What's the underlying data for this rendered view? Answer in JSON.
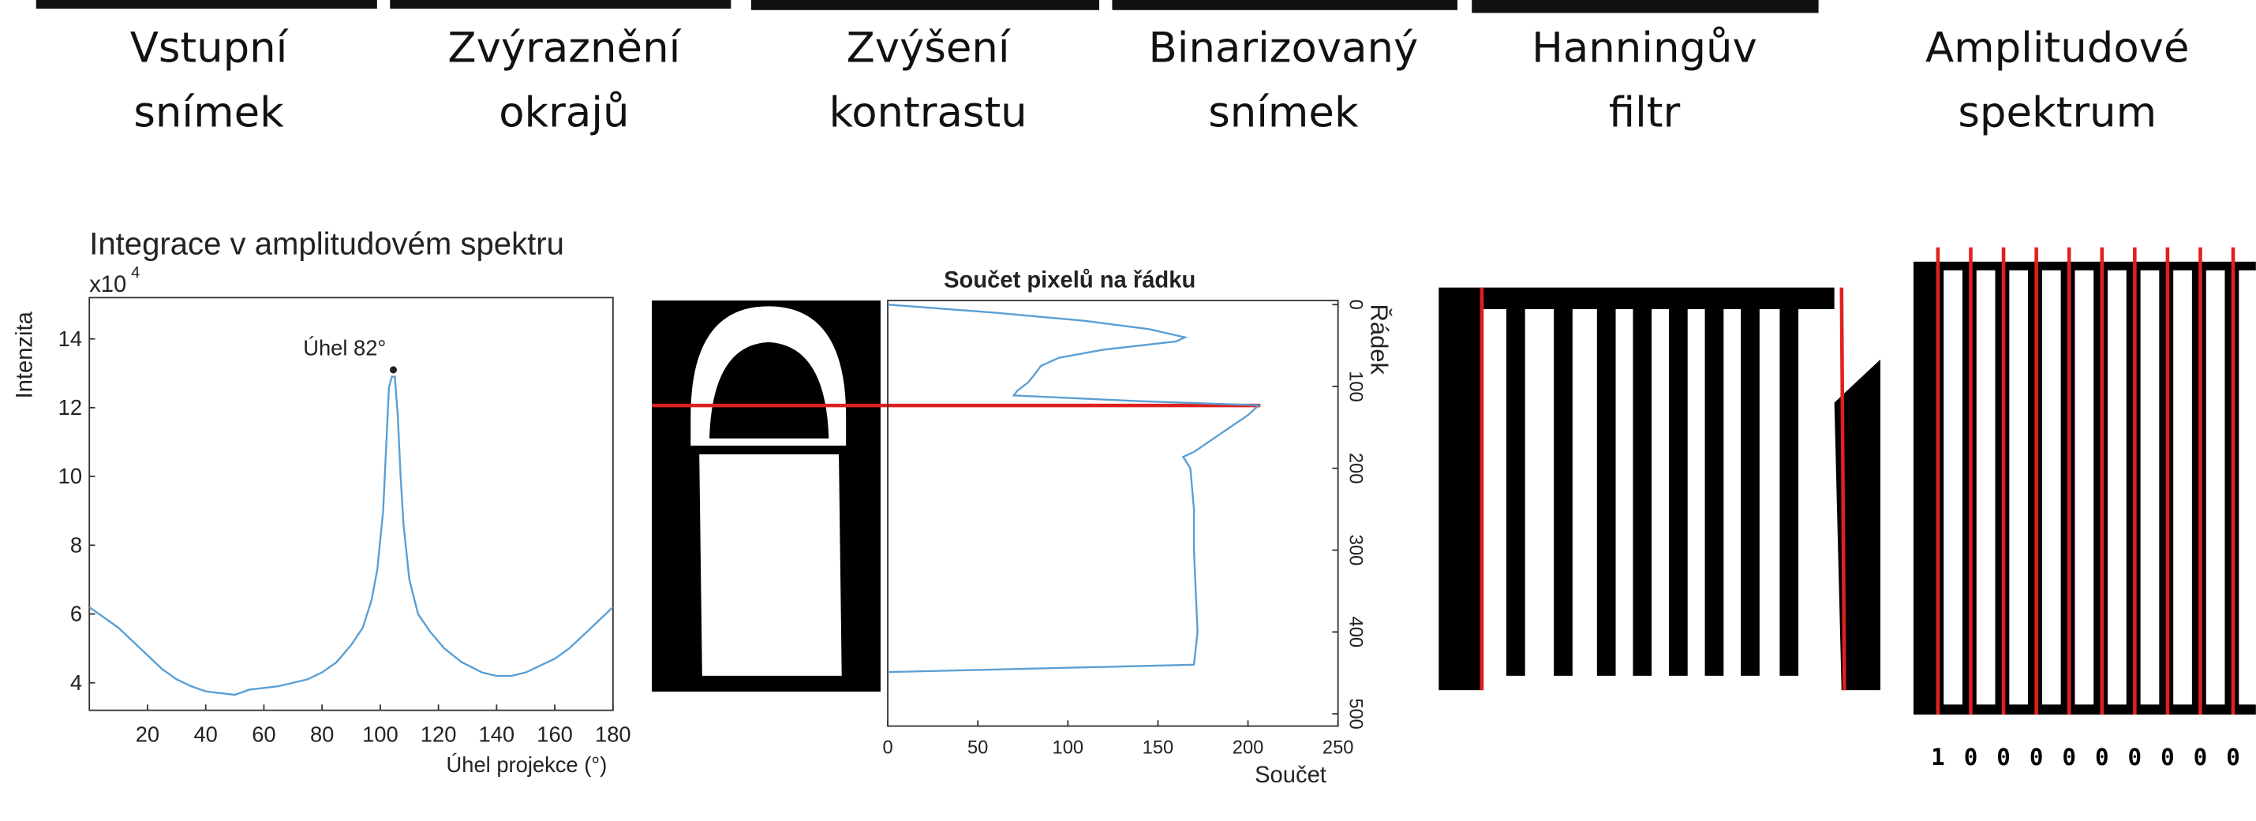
{
  "captions": [
    [
      "Vstupní",
      "snímek"
    ],
    [
      "Zvýraznění",
      "okrajů"
    ],
    [
      "Zvýšení",
      "kontrastu"
    ],
    [
      "Binarizovaný",
      "snímek"
    ],
    [
      "Hanningův",
      "filtr"
    ],
    [
      "Amplitudové",
      "spektrum"
    ]
  ],
  "bit_labels": [
    "1",
    "0",
    "0",
    "0",
    "0",
    "0",
    "0",
    "0",
    "0",
    "0"
  ],
  "chart_data": [
    {
      "type": "line",
      "title": "Integrace v amplitudovém spektru",
      "y_multiplier": "x10",
      "y_multiplier_exponent": "4",
      "x_label": "Úhel projekce (°)",
      "y_label": "Intenzita",
      "xlim": [
        0,
        180
      ],
      "ylim": [
        3.2,
        15.2
      ],
      "xticks": [
        20,
        40,
        60,
        80,
        100,
        120,
        140,
        160,
        180
      ],
      "yticks": [
        4,
        6,
        8,
        10,
        12,
        14
      ],
      "x": [
        0,
        5,
        10,
        15,
        20,
        25,
        30,
        35,
        40,
        45,
        50,
        55,
        60,
        65,
        70,
        75,
        80,
        85,
        90,
        94,
        97,
        99,
        101,
        102,
        103,
        104,
        105,
        106,
        107,
        108,
        110,
        113,
        117,
        122,
        128,
        135,
        140,
        145,
        150,
        155,
        160,
        165,
        170,
        175,
        180
      ],
      "series": [
        {
          "name": "Intenzita",
          "color": "#5a9fd4",
          "values": [
            6.2,
            5.9,
            5.6,
            5.2,
            4.8,
            4.4,
            4.1,
            3.9,
            3.75,
            3.7,
            3.65,
            3.8,
            3.85,
            3.9,
            4.0,
            4.1,
            4.3,
            4.6,
            5.1,
            5.6,
            6.4,
            7.3,
            9.0,
            10.8,
            12.6,
            12.9,
            12.9,
            11.8,
            10.0,
            8.6,
            7.0,
            6.0,
            5.5,
            5.0,
            4.6,
            4.3,
            4.2,
            4.2,
            4.3,
            4.5,
            4.7,
            5.0,
            5.4,
            5.8,
            6.2
          ]
        }
      ],
      "annotation": {
        "text": "Úhel 82°",
        "x": 104.5,
        "y": 13.1
      }
    },
    {
      "type": "line",
      "orientation": "horizontal",
      "title": "Součet pixelů na řádku",
      "x_label": "Součet",
      "y_label": "Řádek",
      "xlim": [
        0,
        250
      ],
      "xticks": [
        0,
        50,
        100,
        150,
        200,
        250
      ],
      "ylim": [
        -5,
        515
      ],
      "yticks": [
        0,
        100,
        200,
        300,
        400,
        500
      ],
      "y": [
        0,
        10,
        20,
        30,
        40,
        45,
        55,
        65,
        75,
        84,
        95,
        105,
        111,
        118,
        123,
        135,
        150,
        165,
        180,
        186,
        200,
        250,
        300,
        350,
        400,
        440,
        449
      ],
      "series": [
        {
          "name": "Součet",
          "color": "#5a9fd4",
          "values": [
            0,
            60,
            110,
            145,
            165,
            160,
            120,
            95,
            85,
            82,
            78,
            72,
            70,
            140,
            206,
            200,
            190,
            180,
            170,
            164,
            168,
            170,
            170,
            171,
            172,
            170,
            0
          ]
        }
      ]
    }
  ]
}
